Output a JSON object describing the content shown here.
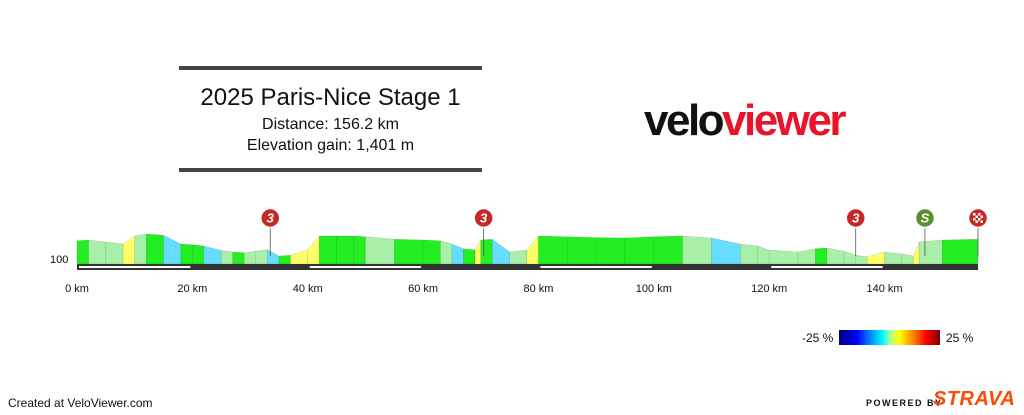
{
  "header": {
    "title": "2025 Paris-Nice Stage 1",
    "distance": "Distance: 156.2 km",
    "elevation": "Elevation gain: 1,401 m"
  },
  "logo": {
    "part1": "velo",
    "part2": "viewer"
  },
  "chart_data": {
    "type": "area",
    "title": "2025 Paris-Nice Stage 1",
    "xlabel": "",
    "ylabel": "",
    "x_unit": "km",
    "xlim": [
      0,
      156.2
    ],
    "x_ticks": [
      0,
      20,
      40,
      60,
      80,
      100,
      120,
      140
    ],
    "x_tick_labels": [
      "0 km",
      "20 km",
      "40 km",
      "60 km",
      "80 km",
      "100 km",
      "120 km",
      "140 km"
    ],
    "y_ticks": [
      100
    ],
    "y_tick_labels": [
      "100"
    ],
    "series": [
      {
        "x": [
          0,
          2,
          5,
          8,
          10,
          12,
          15,
          18,
          20,
          22,
          25,
          27,
          29,
          31,
          33,
          35,
          37,
          40,
          42,
          45,
          48,
          50,
          55,
          60,
          63,
          65,
          67,
          69,
          70,
          72,
          75,
          78,
          80,
          85,
          90,
          95,
          100,
          105,
          110,
          115,
          118,
          120,
          125,
          128,
          130,
          133,
          135,
          137,
          140,
          143,
          145,
          146,
          150,
          156.2
        ],
        "y": [
          148,
          150,
          145,
          140,
          160,
          165,
          162,
          140,
          138,
          135,
          124,
          120,
          118,
          122,
          126,
          110,
          112,
          125,
          160,
          160,
          160,
          158,
          152,
          150,
          148,
          140,
          128,
          125,
          150,
          152,
          120,
          125,
          160,
          158,
          156,
          155,
          158,
          160,
          155,
          140,
          135,
          125,
          120,
          128,
          130,
          122,
          112,
          108,
          120,
          115,
          110,
          145,
          150,
          152
        ]
      }
    ],
    "markers": [
      {
        "km": 33.5,
        "label": "3",
        "type": "climb"
      },
      {
        "km": 70.5,
        "label": "3",
        "type": "climb"
      },
      {
        "km": 135,
        "label": "3",
        "type": "climb"
      },
      {
        "km": 147,
        "label": "S",
        "type": "sprint"
      },
      {
        "km": 156.2,
        "label": "",
        "type": "finish"
      }
    ],
    "gradient_legend": {
      "min": "-25 %",
      "max": "25 %"
    },
    "colors": {
      "flat": "#22ee22",
      "gentle": "#a8f0a8",
      "up": "#ffff66",
      "down": "#66ddff",
      "climb_marker": "#c62828",
      "sprint_marker": "#5a8f2e"
    },
    "grid": false
  },
  "footer": {
    "credit": "Created at VeloViewer.com",
    "powered": "POWERED BY",
    "strava": "STRAVA"
  }
}
